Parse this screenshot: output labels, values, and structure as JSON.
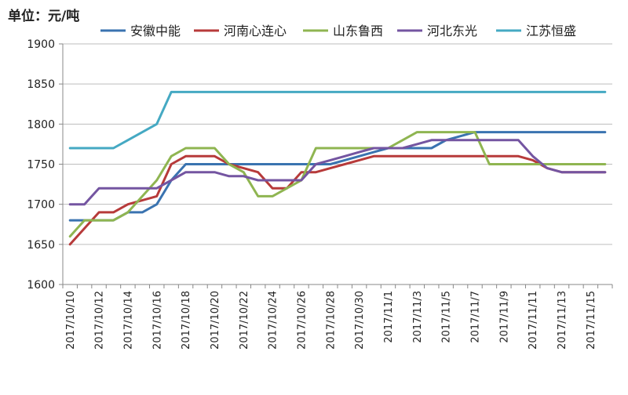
{
  "chart_data": {
    "type": "line",
    "unit_label": "单位：元/吨",
    "ylim": [
      1600,
      1900
    ],
    "y_ticks": [
      1600,
      1650,
      1700,
      1750,
      1800,
      1850,
      1900
    ],
    "x_tick_labels": [
      "2017/10/10",
      "2017/10/12",
      "2017/10/14",
      "2017/10/16",
      "2017/10/18",
      "2017/10/20",
      "2017/10/22",
      "2017/10/24",
      "2017/10/26",
      "2017/10/28",
      "2017/10/30",
      "2017/11/1",
      "2017/11/3",
      "2017/11/5",
      "2017/11/7",
      "2017/11/9",
      "2017/11/11",
      "2017/11/13",
      "2017/11/15"
    ],
    "x": [
      "2017/10/10",
      "2017/10/11",
      "2017/10/12",
      "2017/10/13",
      "2017/10/14",
      "2017/10/15",
      "2017/10/16",
      "2017/10/17",
      "2017/10/18",
      "2017/10/19",
      "2017/10/20",
      "2017/10/21",
      "2017/10/22",
      "2017/10/23",
      "2017/10/24",
      "2017/10/25",
      "2017/10/26",
      "2017/10/27",
      "2017/10/28",
      "2017/10/29",
      "2017/10/30",
      "2017/10/31",
      "2017/11/1",
      "2017/11/2",
      "2017/11/3",
      "2017/11/4",
      "2017/11/5",
      "2017/11/6",
      "2017/11/7",
      "2017/11/8",
      "2017/11/9",
      "2017/11/10",
      "2017/11/11",
      "2017/11/12",
      "2017/11/13",
      "2017/11/14",
      "2017/11/15",
      "2017/11/16"
    ],
    "grid": "horizontal",
    "legend": "top",
    "series": [
      {
        "name": "安徽中能",
        "color": "#3a73b0",
        "values": [
          1680,
          1680,
          1680,
          1680,
          1690,
          1690,
          1700,
          1730,
          1750,
          1750,
          1750,
          1750,
          1750,
          1750,
          1750,
          1750,
          1750,
          1750,
          1750,
          1755,
          1760,
          1765,
          1770,
          1770,
          1770,
          1770,
          1780,
          1785,
          1790,
          1790,
          1790,
          1790,
          1790,
          1790,
          1790,
          1790,
          1790,
          1790
        ]
      },
      {
        "name": "河南心连心",
        "color": "#b73a3a",
        "values": [
          1650,
          1670,
          1690,
          1690,
          1700,
          1705,
          1710,
          1750,
          1760,
          1760,
          1760,
          1750,
          1745,
          1740,
          1720,
          1720,
          1740,
          1740,
          1745,
          1750,
          1755,
          1760,
          1760,
          1760,
          1760,
          1760,
          1760,
          1760,
          1760,
          1760,
          1760,
          1760,
          1755,
          1745,
          1740,
          1740,
          1740,
          1740
        ]
      },
      {
        "name": "山东鲁西",
        "color": "#8fb551",
        "values": [
          1660,
          1680,
          1680,
          1680,
          1690,
          1710,
          1730,
          1760,
          1770,
          1770,
          1770,
          1750,
          1740,
          1710,
          1710,
          1720,
          1730,
          1770,
          1770,
          1770,
          1770,
          1770,
          1770,
          1780,
          1790,
          1790,
          1790,
          1790,
          1790,
          1750,
          1750,
          1750,
          1750,
          1750,
          1750,
          1750,
          1750,
          1750
        ]
      },
      {
        "name": "河北东光",
        "color": "#7455a1",
        "values": [
          1700,
          1700,
          1720,
          1720,
          1720,
          1720,
          1720,
          1730,
          1740,
          1740,
          1740,
          1735,
          1735,
          1730,
          1730,
          1730,
          1730,
          1750,
          1755,
          1760,
          1765,
          1770,
          1770,
          1770,
          1775,
          1780,
          1780,
          1780,
          1780,
          1780,
          1780,
          1780,
          1760,
          1745,
          1740,
          1740,
          1740,
          1740
        ]
      },
      {
        "name": "江苏恒盛",
        "color": "#45a9c3",
        "values": [
          1770,
          1770,
          1770,
          1770,
          1780,
          1790,
          1800,
          1840,
          1840,
          1840,
          1840,
          1840,
          1840,
          1840,
          1840,
          1840,
          1840,
          1840,
          1840,
          1840,
          1840,
          1840,
          1840,
          1840,
          1840,
          1840,
          1840,
          1840,
          1840,
          1840,
          1840,
          1840,
          1840,
          1840,
          1840,
          1840,
          1840,
          1840
        ]
      }
    ]
  }
}
